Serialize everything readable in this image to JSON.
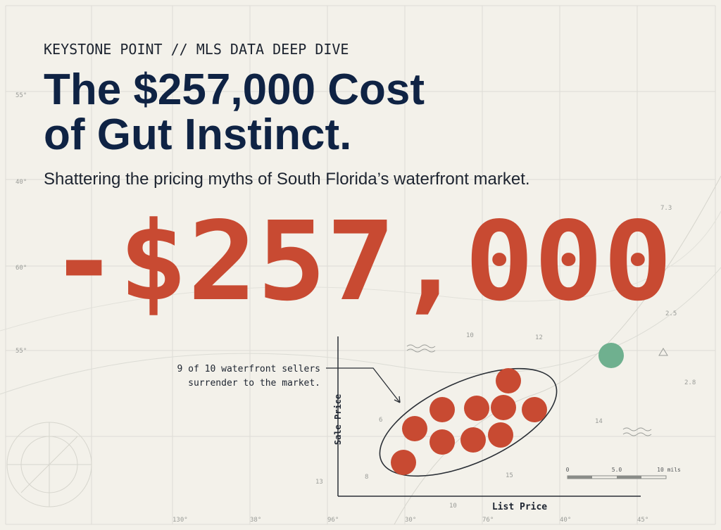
{
  "header": {
    "kicker": "KEYSTONE POINT // MLS DATA DEEP DIVE",
    "title_line1": "The $257,000 Cost",
    "title_line2": "of Gut Instinct.",
    "subtitle": "Shattering the pricing myths of South Florida’s waterfront market."
  },
  "hero_number": "-$257,000",
  "figure": {
    "annotation_line1": "9 of 10 waterfront sellers",
    "annotation_line2": "surrender to the market.",
    "y_label": "Sale Price",
    "x_label": "List Price"
  },
  "scale_bar": {
    "labels": [
      "0",
      "5.0",
      "10 mils"
    ]
  },
  "map_labels": [
    "55°",
    "40°",
    "60°",
    "55°",
    "130°",
    "38°",
    "96°",
    "30°",
    "76°",
    "40°",
    "45°",
    "7.3",
    "2.5",
    "10",
    "12",
    "2.8",
    "14",
    "6",
    "8",
    "15",
    "13",
    "10"
  ]
}
